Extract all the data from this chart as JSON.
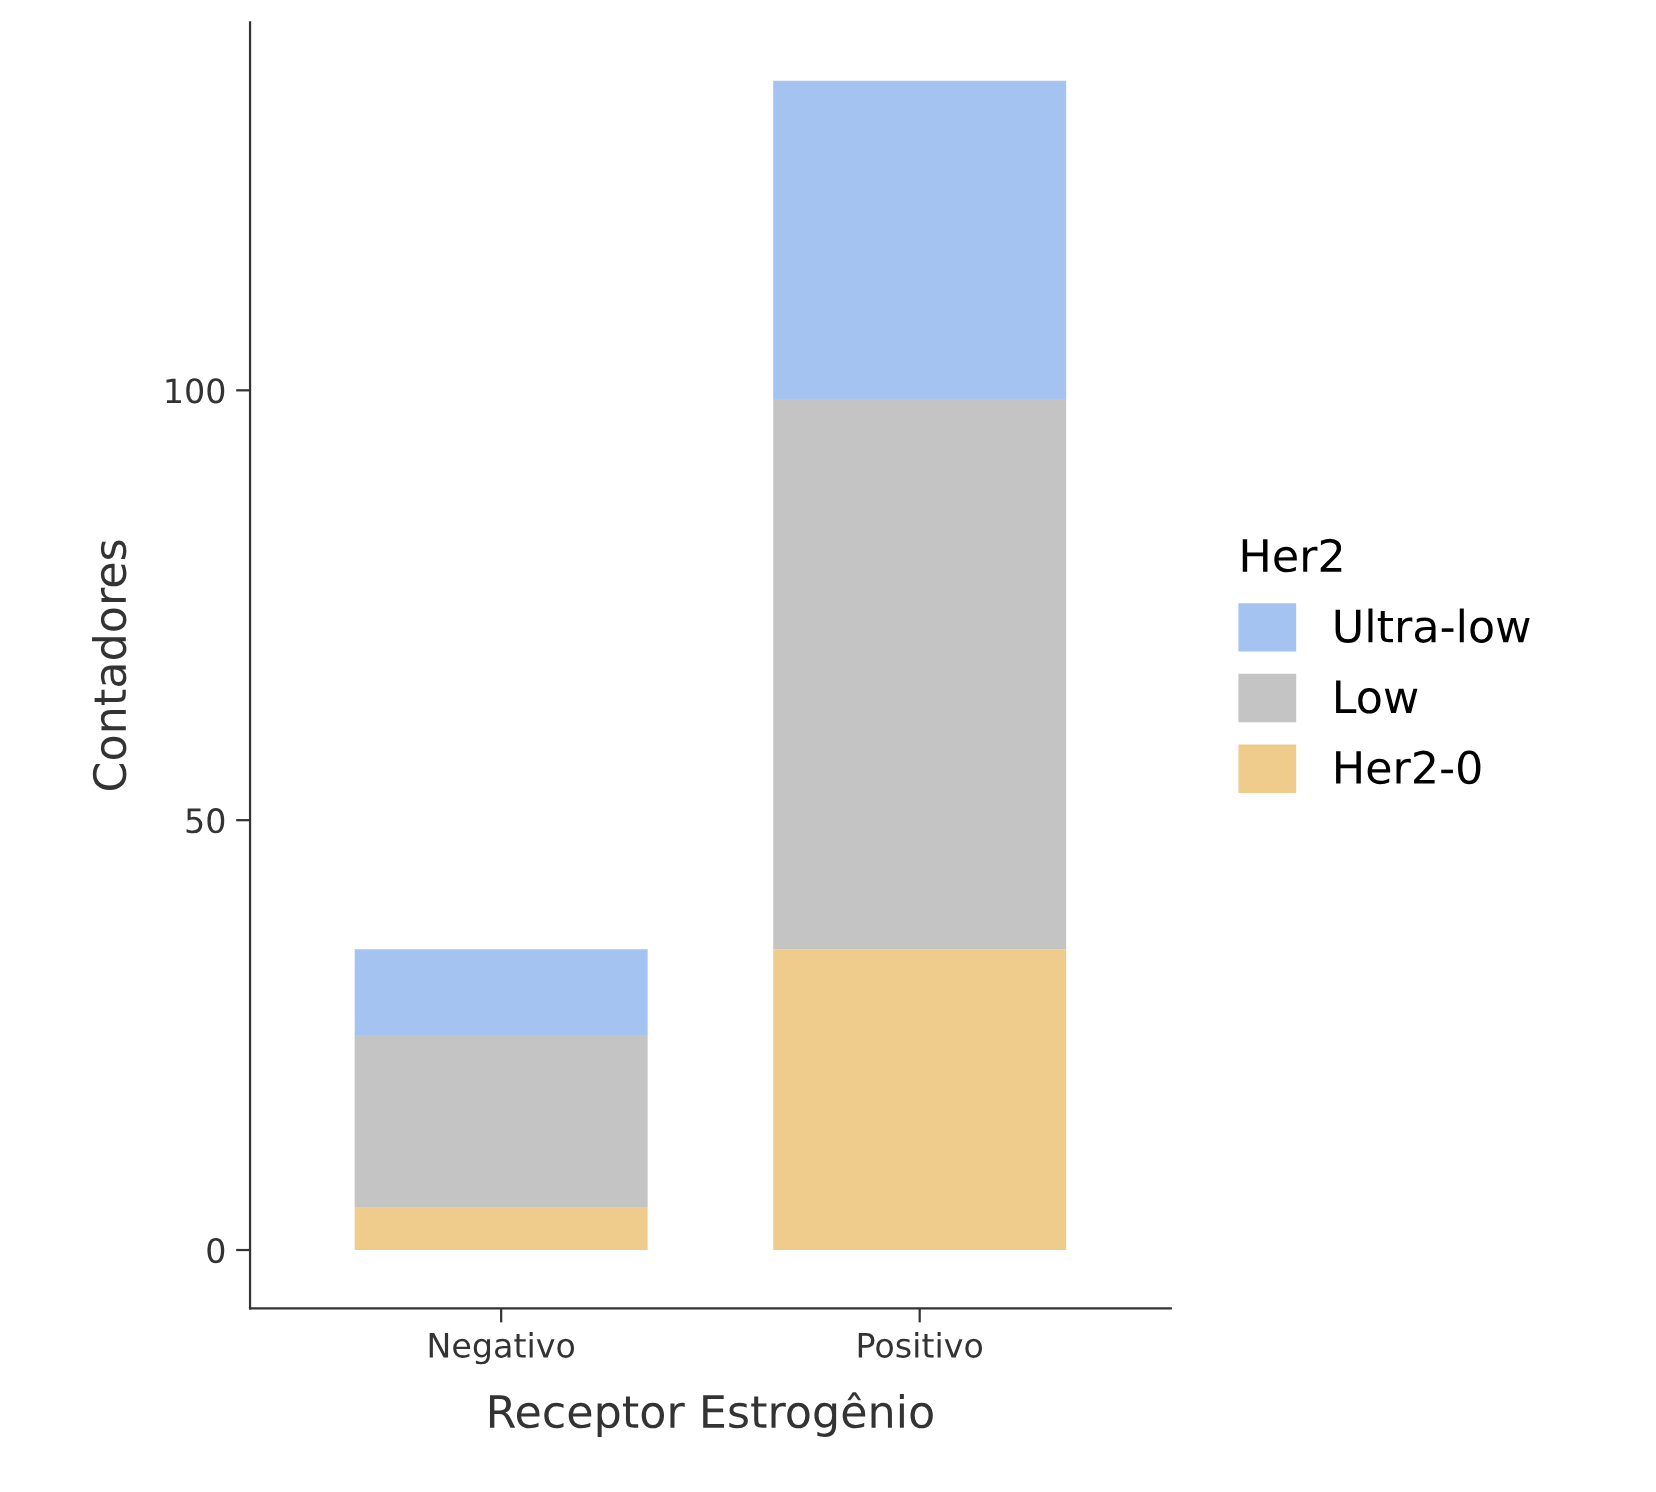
{
  "chart_data": {
    "type": "bar",
    "xlabel": "Receptor Estrogênio",
    "ylabel": "Contadores",
    "legend_title": "Her2",
    "categories": [
      "Negativo",
      "Positivo"
    ],
    "series": [
      {
        "name": "Her2-0",
        "color": "#f0cc8c",
        "values": [
          5,
          35
        ]
      },
      {
        "name": "Low",
        "color": "#c4c4c4",
        "values": [
          20,
          64
        ]
      },
      {
        "name": "Ultra-low",
        "color": "#a4c3f0",
        "values": [
          10,
          37
        ]
      }
    ],
    "stacked": true,
    "ylim": [
      -6.8,
      142.8
    ],
    "yticks": [
      0,
      50,
      100
    ],
    "grid": false,
    "legend": "right"
  }
}
